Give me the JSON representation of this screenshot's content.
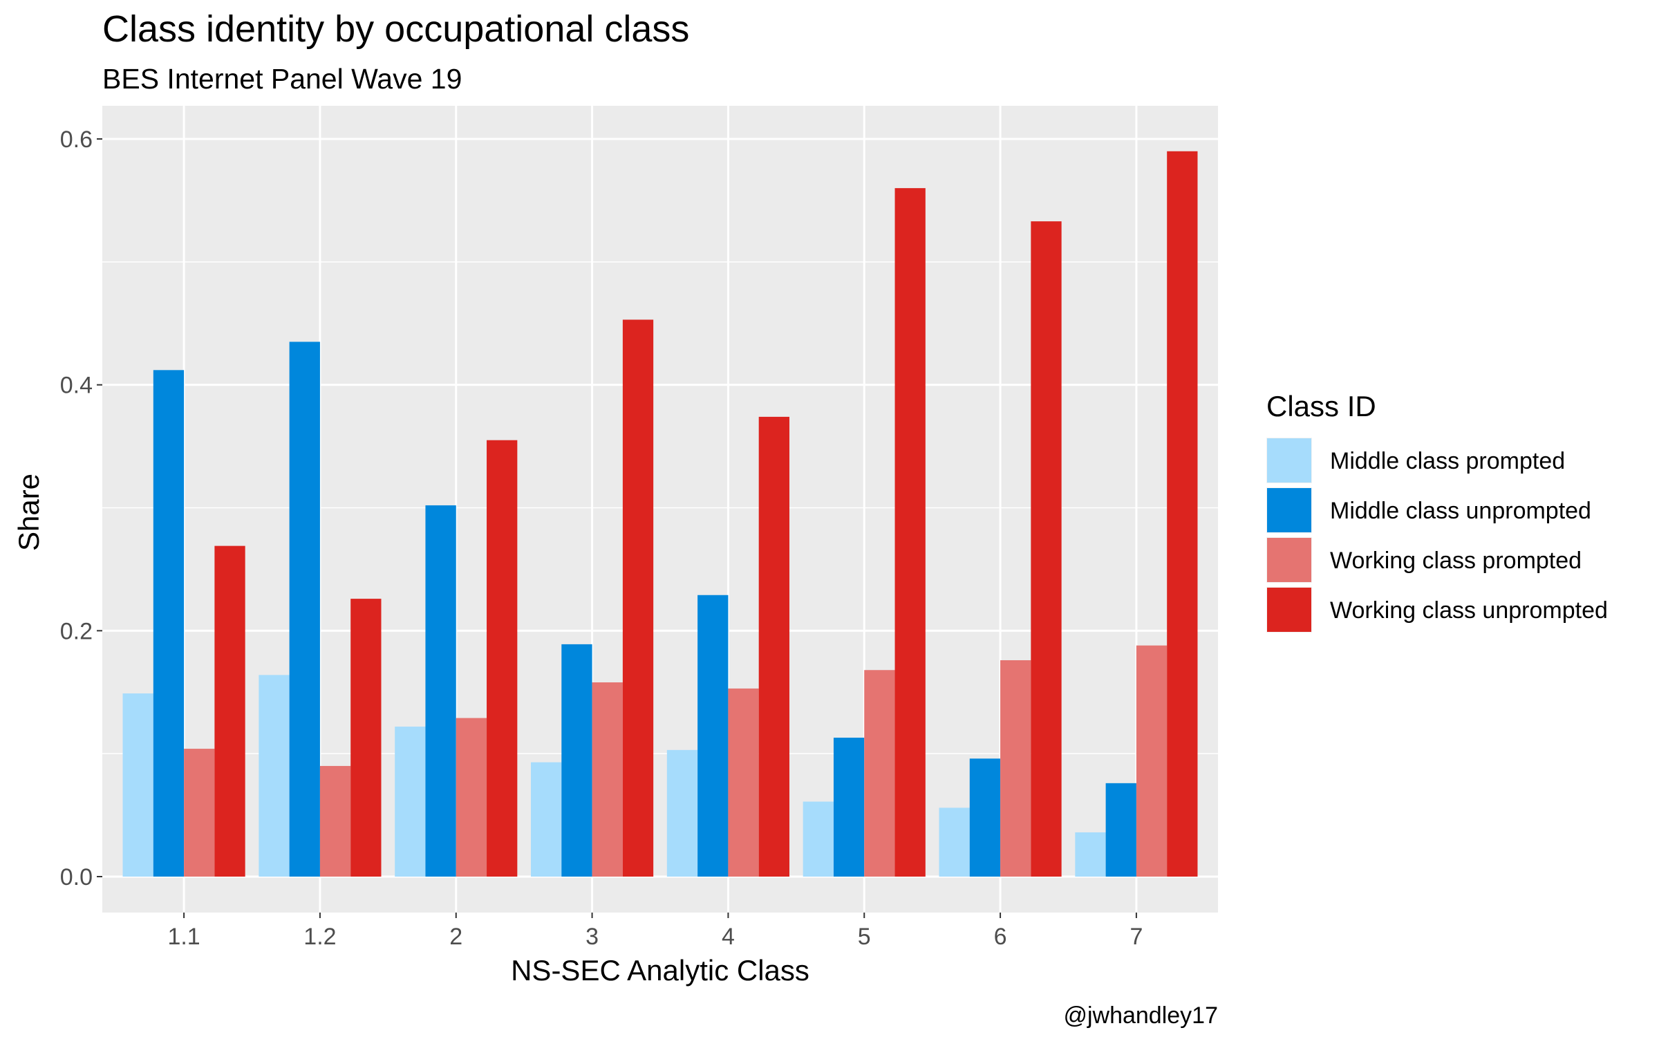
{
  "chart_data": {
    "type": "bar",
    "title": "Class identity by occupational class",
    "subtitle": "BES Internet Panel Wave 19",
    "xlabel": "NS-SEC Analytic Class",
    "ylabel": "Share",
    "caption": "@jwhandley17",
    "ylim": [
      0,
      0.63
    ],
    "yticks": [
      0.0,
      0.2,
      0.4,
      0.6
    ],
    "ytick_labels": [
      "0.0",
      "0.2",
      "0.4",
      "0.6"
    ],
    "grid": true,
    "legend": {
      "title": "Class ID",
      "placement": "right"
    },
    "categories": [
      "1.1",
      "1.2",
      "2",
      "3",
      "4",
      "5",
      "6",
      "7"
    ],
    "series": [
      {
        "name": "Middle class prompted",
        "color": "#a6dcfc",
        "values": [
          0.149,
          0.164,
          0.122,
          0.093,
          0.103,
          0.061,
          0.056,
          0.036
        ]
      },
      {
        "name": "Middle class unprompted",
        "color": "#0087dc",
        "values": [
          0.412,
          0.435,
          0.302,
          0.189,
          0.229,
          0.113,
          0.096,
          0.076
        ]
      },
      {
        "name": "Working class prompted",
        "color": "#e57471",
        "values": [
          0.104,
          0.09,
          0.129,
          0.158,
          0.153,
          0.168,
          0.176,
          0.188
        ]
      },
      {
        "name": "Working class unprompted",
        "color": "#dc241f",
        "values": [
          0.269,
          0.226,
          0.355,
          0.453,
          0.374,
          0.56,
          0.533,
          0.59
        ]
      }
    ]
  }
}
